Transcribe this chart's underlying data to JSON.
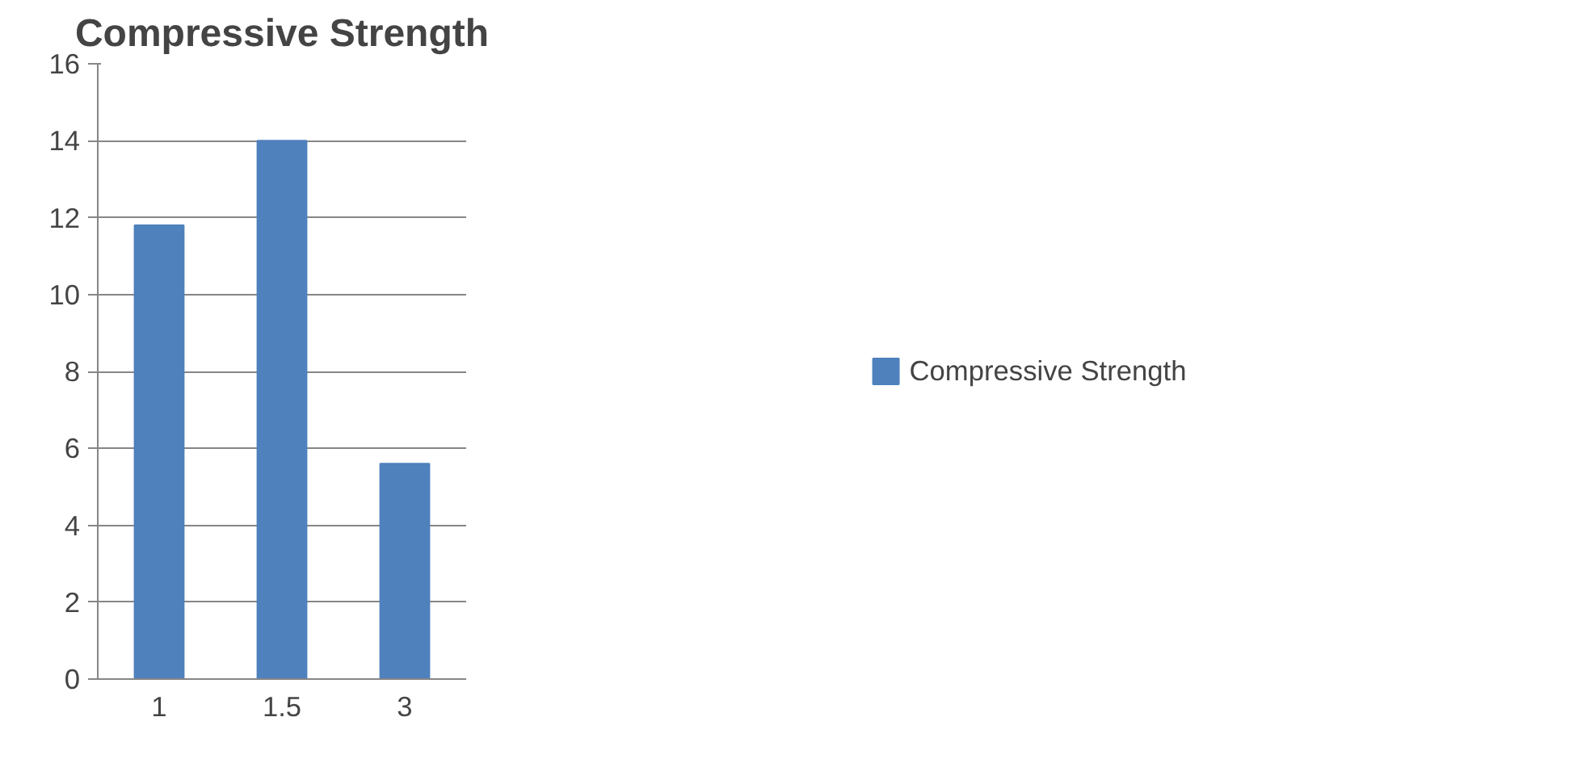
{
  "chart_data": {
    "type": "bar",
    "title": "Compressive Strength",
    "categories": [
      "1",
      "1.5",
      "3"
    ],
    "series": [
      {
        "name": "Compressive Strength",
        "color": "#4f81bd",
        "values": [
          11.8,
          14.0,
          5.6
        ]
      }
    ],
    "ylim": [
      0,
      16
    ],
    "yticks": [
      0,
      2,
      4,
      6,
      8,
      10,
      12,
      14,
      16
    ],
    "grid": "y",
    "legend": "right"
  }
}
